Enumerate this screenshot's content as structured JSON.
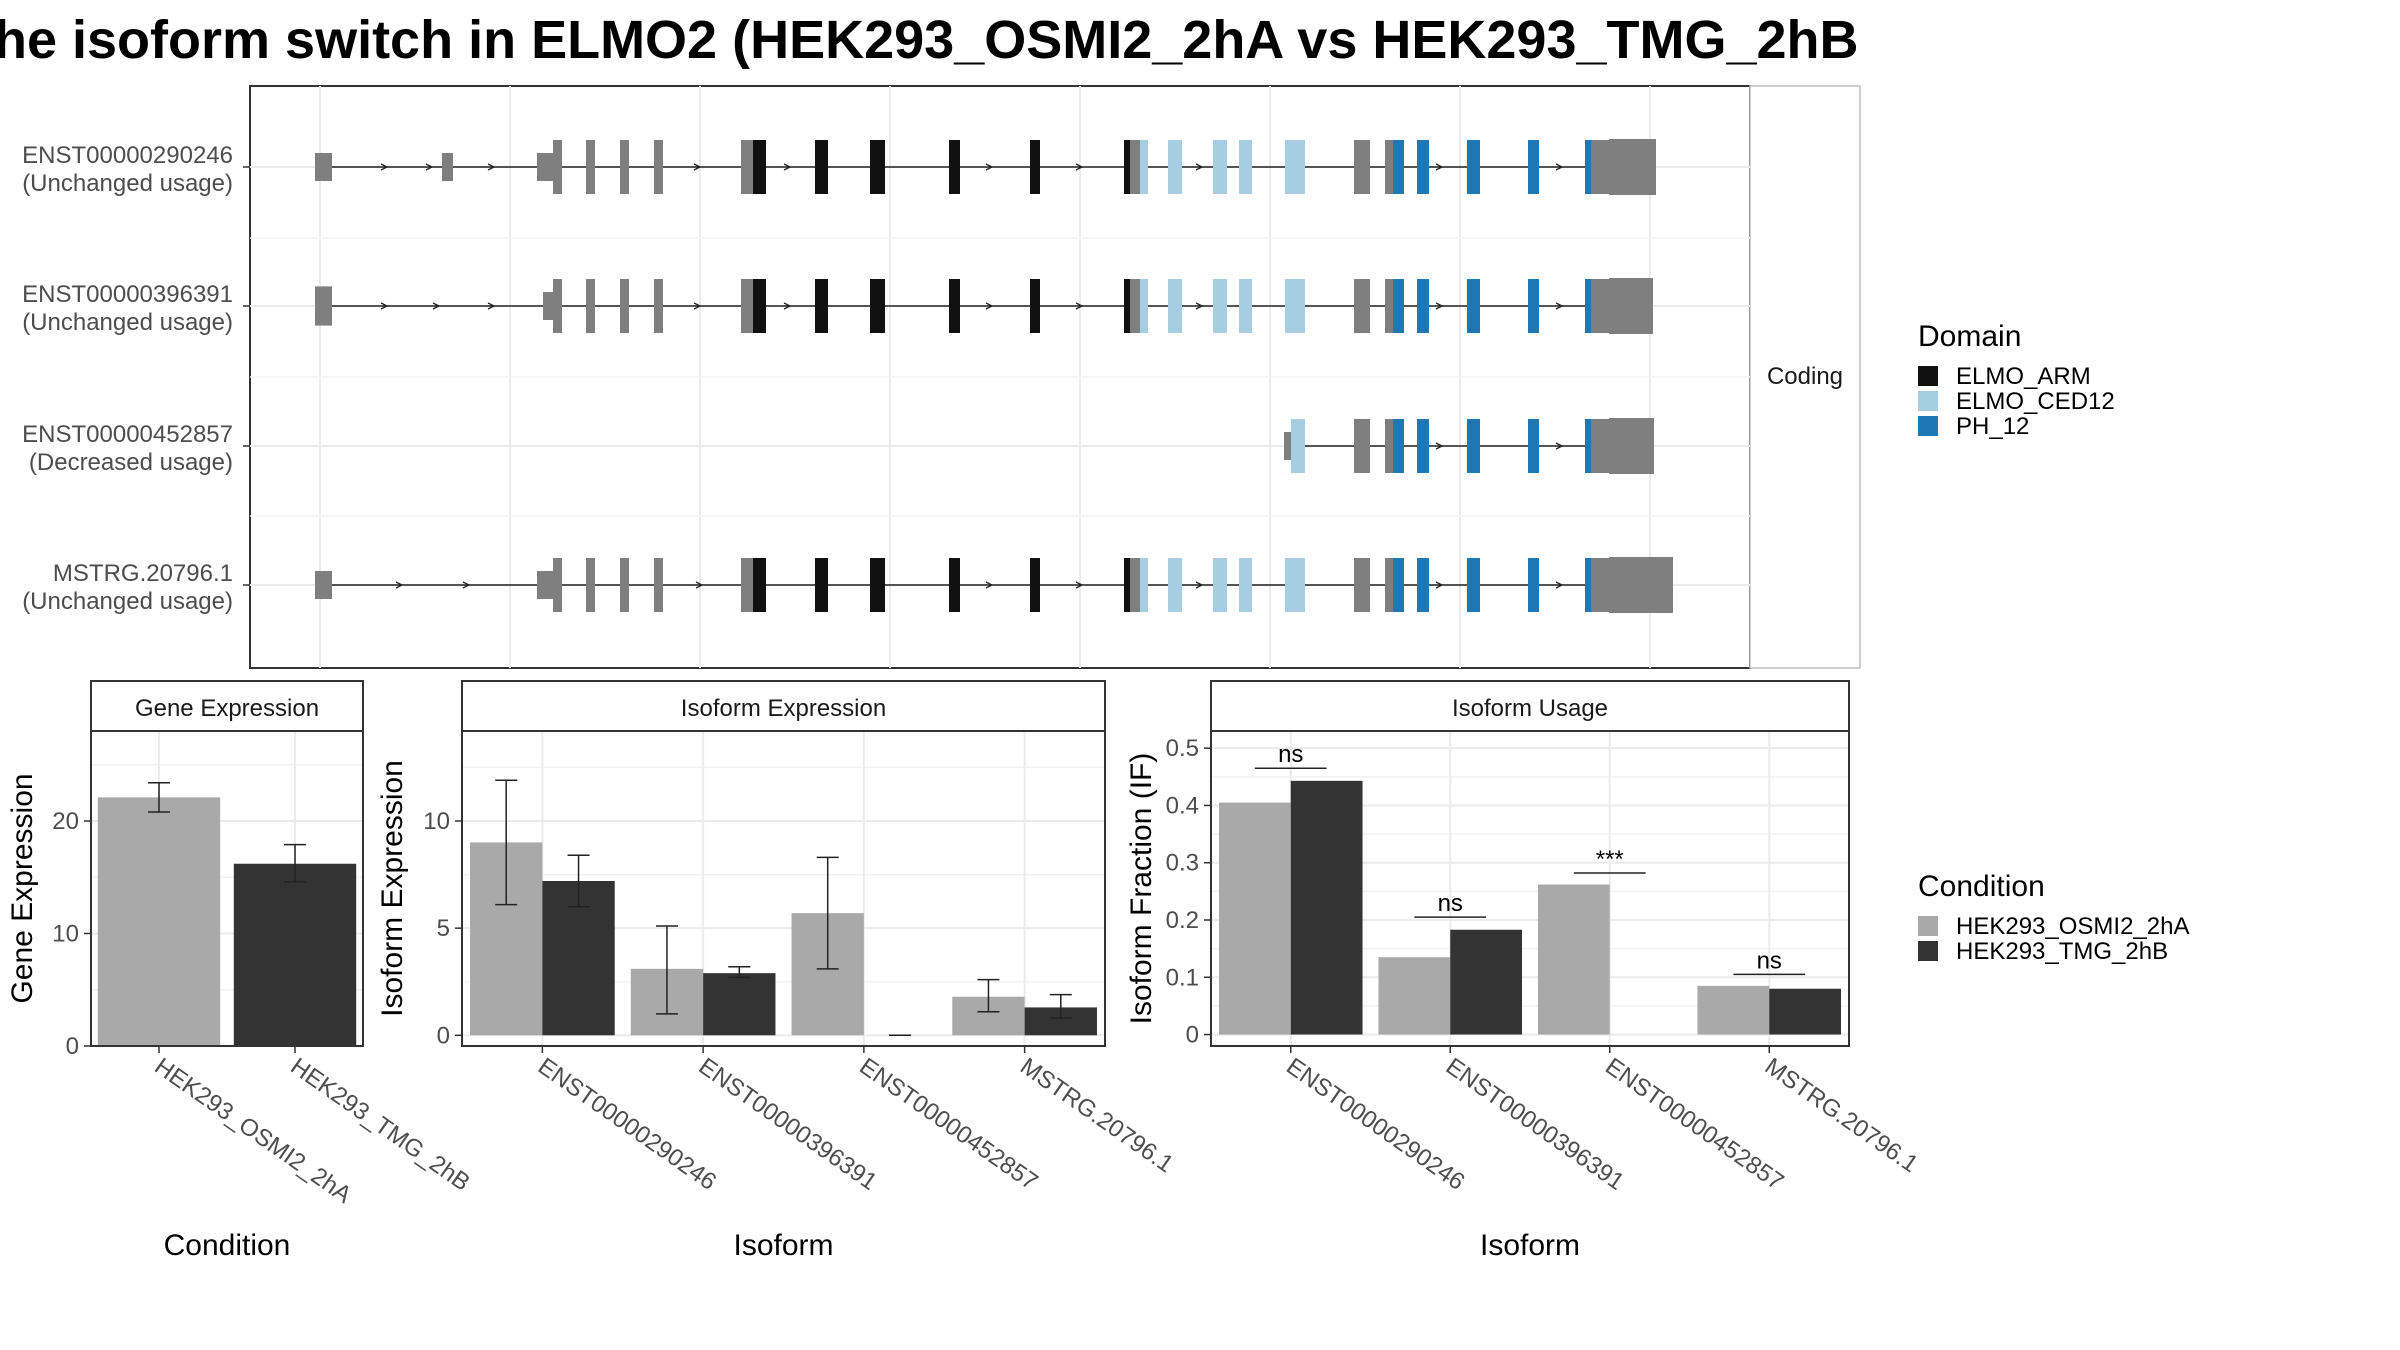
{
  "title": "he isoform switch in ELMO2 (HEK293_OSMI2_2hA vs HEK293_TMG_2hB",
  "structure": {
    "strip_label": "Coding",
    "isoforms": [
      {
        "id": "ENST00000290246",
        "status": "(Unchanged usage)"
      },
      {
        "id": "ENST00000396391",
        "status": "(Unchanged usage)"
      },
      {
        "id": "ENST00000452857",
        "status": "(Decreased usage)"
      },
      {
        "id": "MSTRG.20796.1",
        "status": "(Unchanged usage)"
      }
    ]
  },
  "legend_domain": {
    "title": "Domain",
    "items": [
      {
        "label": "ELMO_ARM",
        "color": "#111111"
      },
      {
        "label": "ELMO_CED12",
        "color": "#A6CEE3"
      },
      {
        "label": "PH_12",
        "color": "#1F78B4"
      }
    ]
  },
  "legend_condition": {
    "title": "Condition",
    "items": [
      {
        "label": "HEK293_OSMI2_2hA",
        "color": "#A9A9A9"
      },
      {
        "label": "HEK293_TMG_2hB",
        "color": "#333333"
      }
    ]
  },
  "chart_data": [
    {
      "type": "bar",
      "strip": "Gene Expression",
      "xlabel": "Condition",
      "ylabel": "Gene Expression",
      "ylim": [
        0,
        28
      ],
      "yticks": [
        0,
        10,
        20
      ],
      "categories": [
        "HEK293_OSMI2_2hA",
        "HEK293_TMG_2hB"
      ],
      "values": [
        22.1,
        16.2
      ],
      "errors": [
        [
          20.8,
          23.4
        ],
        [
          14.6,
          17.9
        ]
      ],
      "colors": [
        "#A9A9A9",
        "#333333"
      ]
    },
    {
      "type": "bar",
      "strip": "Isoform Expression",
      "xlabel": "Isoform",
      "ylabel": "Isoform Expression",
      "ylim": [
        -0.5,
        14.2
      ],
      "yticks": [
        0,
        5,
        10
      ],
      "categories": [
        "ENST00000290246",
        "ENST00000396391",
        "ENST00000452857",
        "MSTRG.20796.1"
      ],
      "series": [
        {
          "name": "HEK293_OSMI2_2hA",
          "values": [
            9.0,
            3.1,
            5.7,
            1.8
          ],
          "errors": [
            [
              6.1,
              11.9
            ],
            [
              1.0,
              5.1
            ],
            [
              3.1,
              8.3
            ],
            [
              1.1,
              2.6
            ]
          ]
        },
        {
          "name": "HEK293_TMG_2hB",
          "values": [
            7.2,
            2.9,
            0.0,
            1.3
          ],
          "errors": [
            [
              6.0,
              8.4
            ],
            [
              2.7,
              3.2
            ],
            [
              0.0,
              0.0
            ],
            [
              0.8,
              1.9
            ]
          ]
        }
      ]
    },
    {
      "type": "bar",
      "strip": "Isoform Usage",
      "xlabel": "Isoform",
      "ylabel": "Isoform Fraction (IF)",
      "ylim": [
        -0.02,
        0.53
      ],
      "yticks": [
        0.0,
        0.1,
        0.2,
        0.3,
        0.4,
        0.5
      ],
      "categories": [
        "ENST00000290246",
        "ENST00000396391",
        "ENST00000452857",
        "MSTRG.20796.1"
      ],
      "series": [
        {
          "name": "HEK293_OSMI2_2hA",
          "values": [
            0.405,
            0.135,
            0.262,
            0.085
          ]
        },
        {
          "name": "HEK293_TMG_2hB",
          "values": [
            0.443,
            0.183,
            0.0,
            0.08
          ]
        }
      ],
      "significance": [
        "ns",
        "ns",
        "***",
        "ns"
      ],
      "significance_y": [
        0.465,
        0.205,
        0.282,
        0.105
      ]
    }
  ]
}
